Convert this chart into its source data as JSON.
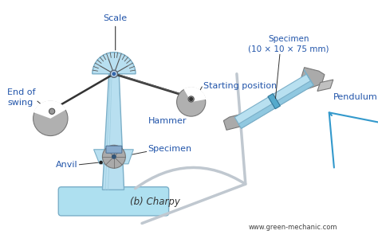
{
  "bg_color": "#ffffff",
  "blue": "#2255aa",
  "dark": "#333333",
  "mc": "#b8dff0",
  "me": "#7bafc8",
  "hc_light": "#c0c0c0",
  "hc_dark": "#888888",
  "base_color": "#aee0f0",
  "label_scale": "Scale",
  "label_starting": "Starting position",
  "label_end_swing": "End of\nswing",
  "label_hammer": "Hammer",
  "label_specimen_main": "Specimen",
  "label_anvil": "Anvil",
  "label_specimen_side": "Specimen\n(10 × 10 × 75 mm)",
  "label_pendulum": "Pendulum",
  "label_charpy": "(b) Charpy",
  "label_website": "www.green-mechanic.com"
}
